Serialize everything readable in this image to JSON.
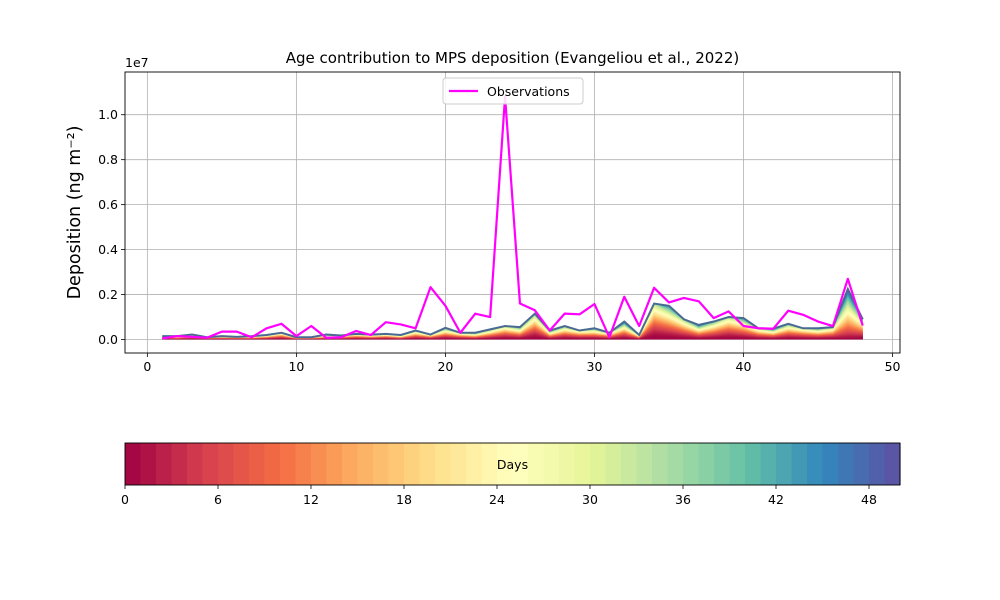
{
  "chart_data": {
    "type": "area",
    "title": "Age contribution to MPS deposition (Evangeliou et al., 2022)",
    "ylabel": "Deposition (ng m⁻²)",
    "y_multiplier_label": "1e7",
    "x_ticks": [
      "0",
      "10",
      "20",
      "30",
      "40",
      "50"
    ],
    "y_ticks": [
      "0.0",
      "0.2",
      "0.4",
      "0.6",
      "0.8",
      "1.0"
    ],
    "xlim": [
      -1.5,
      50.5
    ],
    "ylim": [
      -0.06,
      1.19
    ],
    "grid": true,
    "legend_placement": "top-center",
    "x": [
      1,
      2,
      3,
      4,
      5,
      6,
      7,
      8,
      9,
      10,
      11,
      12,
      13,
      14,
      15,
      16,
      17,
      18,
      19,
      20,
      21,
      22,
      23,
      24,
      25,
      26,
      27,
      28,
      29,
      30,
      31,
      32,
      33,
      34,
      35,
      36,
      37,
      38,
      39,
      40,
      41,
      42,
      43,
      44,
      45,
      46,
      47,
      48
    ],
    "series": [
      {
        "name": "Observations",
        "color": "#ff00ff",
        "values": [
          0.005,
          0.015,
          0.012,
          0.008,
          0.035,
          0.035,
          0.01,
          0.05,
          0.07,
          0.015,
          0.06,
          0.008,
          0.01,
          0.038,
          0.02,
          0.077,
          0.067,
          0.05,
          0.233,
          0.15,
          0.03,
          0.115,
          0.1,
          1.08,
          0.16,
          0.13,
          0.04,
          0.115,
          0.112,
          0.158,
          0.01,
          0.19,
          0.06,
          0.23,
          0.165,
          0.185,
          0.17,
          0.095,
          0.125,
          0.06,
          0.05,
          0.048,
          0.128,
          0.11,
          0.08,
          0.06,
          0.27,
          0.062
        ]
      }
    ],
    "age_contribution_total": [
      0.015,
      0.015,
      0.022,
      0.01,
      0.015,
      0.012,
      0.015,
      0.02,
      0.03,
      0.01,
      0.01,
      0.022,
      0.018,
      0.025,
      0.022,
      0.025,
      0.02,
      0.04,
      0.022,
      0.052,
      0.03,
      0.03,
      0.045,
      0.06,
      0.055,
      0.115,
      0.04,
      0.06,
      0.04,
      0.05,
      0.03,
      0.08,
      0.02,
      0.16,
      0.15,
      0.09,
      0.065,
      0.08,
      0.1,
      0.095,
      0.05,
      0.048,
      0.07,
      0.05,
      0.05,
      0.055,
      0.225,
      0.09
    ],
    "colorbar": {
      "label": "Days",
      "ticks": [
        "0",
        "6",
        "12",
        "18",
        "24",
        "30",
        "36",
        "42",
        "48"
      ],
      "min": 0,
      "max": 50,
      "colormap": "Spectral",
      "bins": 50
    }
  }
}
